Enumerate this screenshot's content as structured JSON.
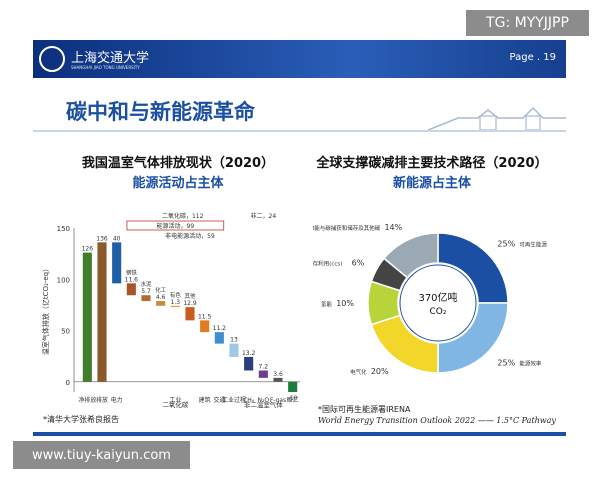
{
  "watermarks": {
    "top": "TG: MYYJJPP",
    "bottom": "www.tiuy-kaiyun.com"
  },
  "header": {
    "university": "上海交通大学",
    "university_en": "SHANGHAI JIAO TONG UNIVERSITY",
    "page": "Page . 19"
  },
  "slide_title": "碳中和与新能源革命",
  "left_title": "我国温室气体排放现状（2020）",
  "left_subtitle": "能源活动占主体",
  "right_title": "全球支撑碳减排主要技术路径（2020）",
  "right_subtitle": "新能源占主体",
  "note_left": "*清华大学张希良报告",
  "note_right_1": "*国际可再生能源署IRENA",
  "note_right_2": "World Energy Transition Outlook 2022 —— 1.5°C Pathway",
  "colors": {
    "brand_blue": "#1b4fa3",
    "header_dark": "#0b2f7c"
  },
  "chart_data": [
    {
      "type": "bar",
      "ylabel": "温室气体排放（亿tCO₂-eq）",
      "ylim": [
        -10,
        150
      ],
      "yticks": [
        0,
        50,
        100,
        150
      ],
      "bars": [
        {
          "label": "126",
          "value": 126,
          "base": 0,
          "color": "#3f7f2c"
        },
        {
          "label": "136",
          "value": 136,
          "base": 0,
          "color": "#8a5a2b"
        },
        {
          "label": "40",
          "value": 40,
          "base": 96,
          "color": "#1f5fa6"
        },
        {
          "label": "11.6",
          "value": 11.6,
          "base": 84.4,
          "color": "#a8552a",
          "name": "钢铁"
        },
        {
          "label": "5.7",
          "value": 5.7,
          "base": 78.7,
          "color": "#b36a2e",
          "name": "水泥"
        },
        {
          "label": "4.6",
          "value": 4.6,
          "base": 74.1,
          "color": "#c88a3a",
          "name": "化工"
        },
        {
          "label": "1.3",
          "value": 1.3,
          "base": 72.8,
          "color": "#d9a441",
          "name": "有色"
        },
        {
          "label": "12.9",
          "value": 12.9,
          "base": 59.9,
          "color": "#c95b1e",
          "name": "其他"
        },
        {
          "label": "11.5",
          "value": 11.5,
          "base": 48.4,
          "color": "#e07b22"
        },
        {
          "label": "11.2",
          "value": 11.2,
          "base": 37.2,
          "color": "#3e8ed0"
        },
        {
          "label": "13",
          "value": 13,
          "base": 24.2,
          "color": "#9fc7e6"
        },
        {
          "label": "13.2",
          "value": 13.2,
          "base": 11,
          "color": "#2c3e80"
        },
        {
          "label": "7.2",
          "value": 7.2,
          "base": 3.8,
          "color": "#6d3f8e"
        },
        {
          "label": "3.6",
          "value": 3.6,
          "base": 0.2,
          "color": "#555555"
        },
        {
          "label": "-10",
          "value": -10,
          "base": 0,
          "color": "#1e7c3a"
        }
      ],
      "xlabels": [
        "净排放",
        "排放",
        "电力",
        "工业",
        "建筑",
        "交通",
        "工业过程",
        "CH₄",
        "N₂O",
        "F-gas",
        "碳汇"
      ],
      "group_labels": [
        "二氧化碳",
        "非二温室气体"
      ],
      "annotations": [
        "二氧化碳，112",
        "能源活动，99",
        "非电能源活动，59",
        "非二，24"
      ]
    },
    {
      "type": "pie",
      "center_label": "370亿吨",
      "center_sub": "CO₂",
      "slices": [
        {
          "name": "可再生能源",
          "value": 25,
          "label": "25%",
          "color": "#1b4fa3"
        },
        {
          "name": "能源效率",
          "value": 25,
          "label": "25%",
          "color": "#7fb6e3"
        },
        {
          "name": "电气化",
          "value": 20,
          "label": "20%",
          "color": "#f2d629"
        },
        {
          "name": "氢能",
          "value": 10,
          "label": "10%",
          "color": "#b7d43a"
        },
        {
          "name": "碳捕获和储存利用(ccs)",
          "value": 6,
          "label": "6%",
          "color": "#444444"
        },
        {
          "name": "生物能与碳捕获和储存及其他碳捕获措施组合方式(BECCS)",
          "value": 14,
          "label": "14%",
          "color": "#9aa9b4"
        }
      ]
    }
  ]
}
